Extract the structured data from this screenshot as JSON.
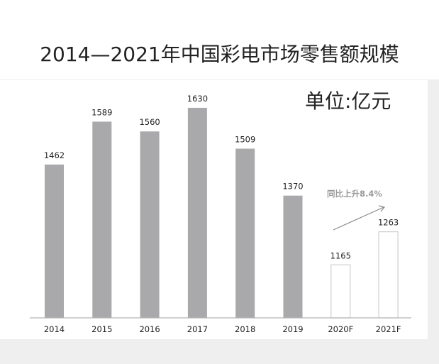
{
  "chart_data": {
    "type": "bar",
    "title": "2014—2021年中国彩电市场零售额规模",
    "unit_label": "单位:亿元",
    "categories": [
      "2014",
      "2015",
      "2016",
      "2017",
      "2018",
      "2019",
      "2020F",
      "2021F"
    ],
    "values": [
      1462,
      1589,
      1560,
      1630,
      1509,
      1370,
      1165,
      1263
    ],
    "forecast": [
      false,
      false,
      false,
      false,
      false,
      false,
      true,
      true
    ],
    "annotation": "同比上升8.4%",
    "ylim": [
      1008,
      1700
    ],
    "colors": {
      "actual": "#a9a8aa",
      "forecast": "#ffffff",
      "forecast_stroke": "#cfcfcf",
      "axis": "#b5b5b5"
    }
  }
}
